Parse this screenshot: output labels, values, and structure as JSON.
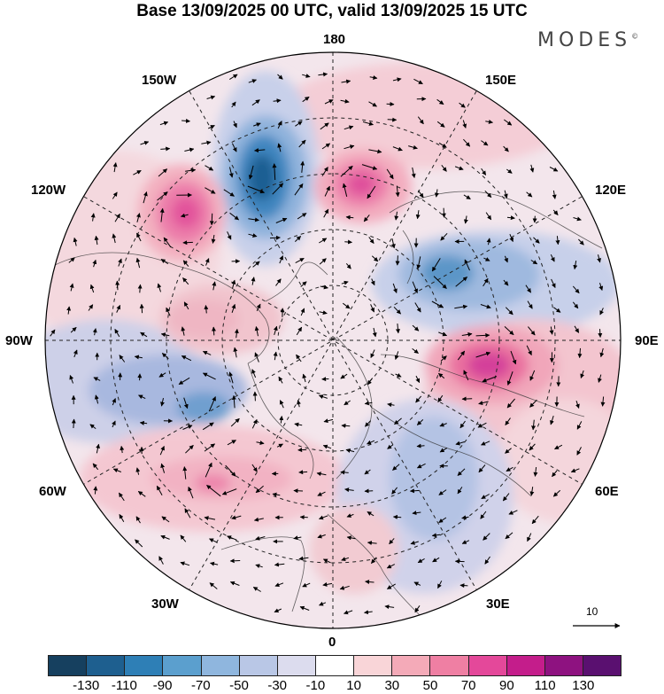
{
  "title": "Base 13/09/2025 00 UTC, valid 13/09/2025 15 UTC",
  "brand": "MODES",
  "brand_mark": "©",
  "longitude_labels": {
    "top": "180",
    "top_left": "150W",
    "top_right": "150E",
    "upper_left": "120W",
    "upper_right": "120E",
    "left": "90W",
    "right": "90E",
    "lower_left": "60W",
    "lower_right": "60E",
    "bottom_left": "30W",
    "bottom_right": "30E",
    "bottom": "0"
  },
  "reference_vector_label": "10",
  "colorbar": {
    "colors": [
      "#16405f",
      "#1e5f8f",
      "#2e7fb6",
      "#5b9fce",
      "#8fb6de",
      "#b9c7e6",
      "#dcdcee",
      "#ffffff",
      "#f9d5d8",
      "#f4aab8",
      "#ef7fa3",
      "#e4489a",
      "#c41d8b",
      "#8e1280",
      "#5a1070"
    ],
    "ticks": [
      "-130",
      "-110",
      "-90",
      "-70",
      "-50",
      "-30",
      "-10",
      "10",
      "30",
      "50",
      "70",
      "90",
      "110",
      "130"
    ]
  }
}
